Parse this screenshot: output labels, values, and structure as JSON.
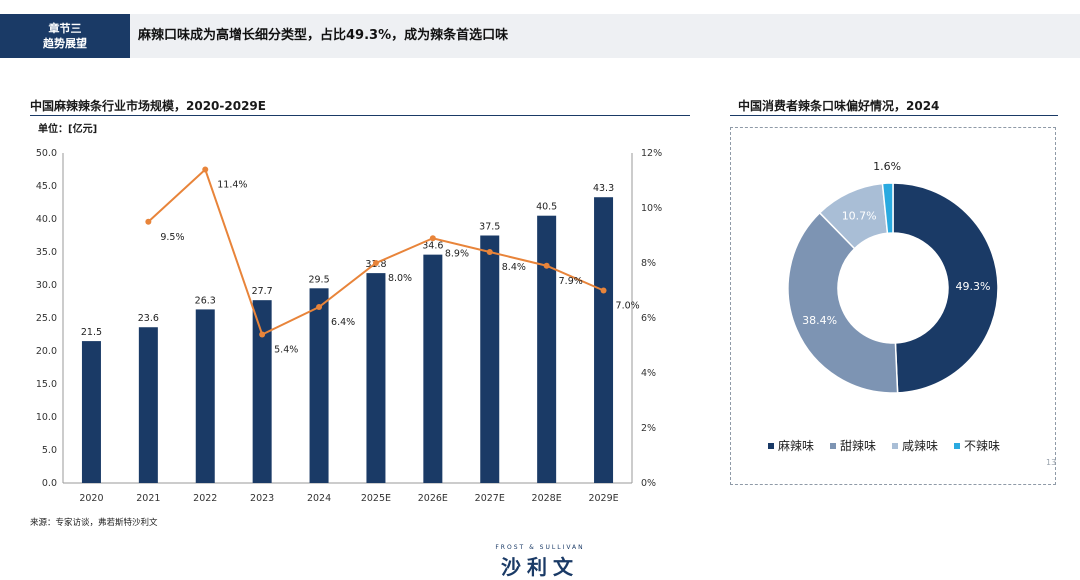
{
  "header": {
    "chapter_line1": "章节三",
    "chapter_line2": "趋势展望",
    "title": "麻辣口味成为高增长细分类型，占比49.3%，成为辣条首选口味"
  },
  "left_chart": {
    "title": "中国麻辣辣条行业市场规模，2020-2029E",
    "unit": "单位：[亿元]",
    "source": "来源：专家访谈，弗若斯特沙利文"
  },
  "right_chart": {
    "title": "中国消费者辣条口味偏好情况，2024"
  },
  "page_number": "13",
  "logo": {
    "top_text": "FROST & SULLIVAN",
    "main_text": "沙利文"
  },
  "colors": {
    "bar": "#1a3a66",
    "line": "#e8843a",
    "slice1": "#1a3a66",
    "slice2": "#7d94b3",
    "slice3": "#a9bed6",
    "slice4": "#2aaae0"
  },
  "chart_data": [
    {
      "type": "bar",
      "categories": [
        "2020",
        "2021",
        "2022",
        "2023",
        "2024",
        "2025E",
        "2026E",
        "2027E",
        "2028E",
        "2029E"
      ],
      "values": [
        21.5,
        23.6,
        26.3,
        27.7,
        29.5,
        31.8,
        34.6,
        37.5,
        40.5,
        43.3
      ],
      "value_labels": [
        "21.5",
        "23.6",
        "26.3",
        "27.7",
        "29.5",
        "31.8",
        "34.6",
        "37.5",
        "40.5",
        "43.3"
      ],
      "ylim": [
        0,
        50
      ],
      "yticks": [
        "0.0",
        "5.0",
        "10.0",
        "15.0",
        "20.0",
        "25.0",
        "30.0",
        "35.0",
        "40.0",
        "45.0",
        "50.0"
      ],
      "line_series": {
        "type": "line",
        "axis": "right",
        "x": [
          "2021",
          "2022",
          "2023",
          "2024",
          "2025E",
          "2026E",
          "2027E",
          "2028E",
          "2029E"
        ],
        "values": [
          9.5,
          11.4,
          5.4,
          6.4,
          8.0,
          8.9,
          8.4,
          7.9,
          7.0
        ],
        "labels": [
          "9.5%",
          "11.4%",
          "5.4%",
          "6.4%",
          "8.0%",
          "8.9%",
          "8.4%",
          "7.9%",
          "7.0%"
        ]
      },
      "y2lim": [
        0,
        12
      ],
      "y2ticks": [
        "0%",
        "2%",
        "4%",
        "6%",
        "8%",
        "10%",
        "12%"
      ],
      "grid": false
    },
    {
      "type": "pie",
      "donut": true,
      "categories": [
        "麻辣味",
        "甜辣味",
        "咸辣味",
        "不辣味"
      ],
      "values": [
        49.3,
        38.4,
        10.7,
        1.6
      ],
      "labels": [
        "49.3%",
        "38.4%",
        "10.7%",
        "1.6%"
      ],
      "legend_position": "bottom"
    }
  ]
}
